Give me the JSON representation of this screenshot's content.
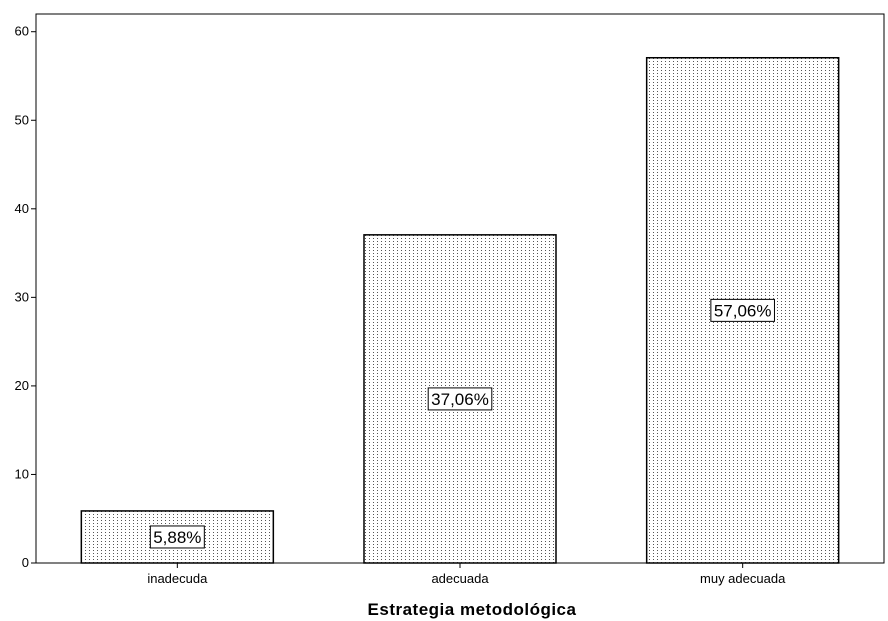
{
  "chart_data": {
    "type": "bar",
    "categories": [
      "inadecuda",
      "adecuada",
      "muy adecuada"
    ],
    "values": [
      5.88,
      37.06,
      57.06
    ],
    "data_labels": [
      "5,88%",
      "37,06%",
      "57,06%"
    ],
    "title": "",
    "xlabel": "Estrategia metodológica",
    "ylabel": "",
    "ylim": [
      0,
      62
    ],
    "y_ticks": [
      0,
      10,
      20,
      30,
      40,
      50,
      60
    ],
    "grid": false,
    "legend": "none",
    "bar_fill": "#ffffff",
    "bar_pattern": "dotted vertical stipple",
    "bar_stroke": "#000000"
  }
}
